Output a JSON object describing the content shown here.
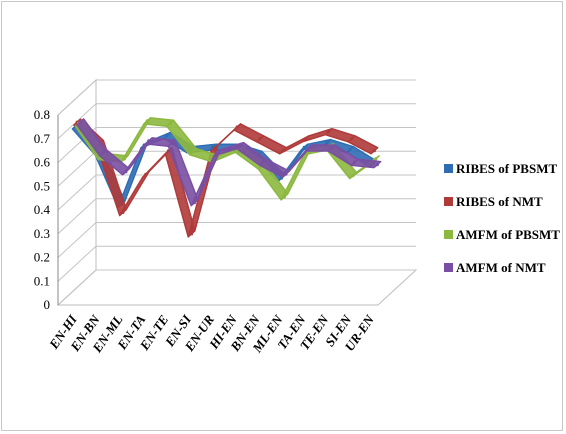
{
  "chart_data": {
    "type": "line",
    "title": "",
    "xlabel": "",
    "ylabel": "",
    "ylim": [
      0,
      0.8
    ],
    "yticks": [
      "0",
      "0.1",
      "0.2",
      "0.3",
      "0.4",
      "0.5",
      "0.6",
      "0.7",
      "0.8"
    ],
    "categories": [
      "EN-HI",
      "EN-BN",
      "EN-ML",
      "EN-TA",
      "EN-TE",
      "EN-SI",
      "EN-UR",
      "HI-EN",
      "BN-EN",
      "ML-EN",
      "TA-EN",
      "TE-EN",
      "SI-EN",
      "UR-EN"
    ],
    "legend_position": "right",
    "grid": true,
    "series": [
      {
        "name": "RIBES of PBSMT",
        "color": "#2e6db4",
        "values": [
          0.73,
          0.62,
          0.4,
          0.65,
          0.69,
          0.63,
          0.64,
          0.64,
          0.61,
          0.51,
          0.64,
          0.66,
          0.63,
          0.57
        ]
      },
      {
        "name": "RIBES of NMT",
        "color": "#b03a3a",
        "values": [
          0.74,
          0.65,
          0.36,
          0.52,
          0.62,
          0.27,
          0.63,
          0.72,
          0.67,
          0.62,
          0.67,
          0.7,
          0.67,
          0.62
        ]
      },
      {
        "name": "AMFM of PBSMT",
        "color": "#8db83f",
        "values": [
          0.73,
          0.59,
          0.58,
          0.74,
          0.73,
          0.61,
          0.58,
          0.62,
          0.55,
          0.42,
          0.61,
          0.63,
          0.51,
          0.58
        ]
      },
      {
        "name": "AMFM of NMT",
        "color": "#7a4fa3",
        "values": [
          0.73,
          0.6,
          0.52,
          0.65,
          0.64,
          0.39,
          0.6,
          0.63,
          0.56,
          0.51,
          0.62,
          0.62,
          0.56,
          0.55
        ]
      }
    ]
  }
}
